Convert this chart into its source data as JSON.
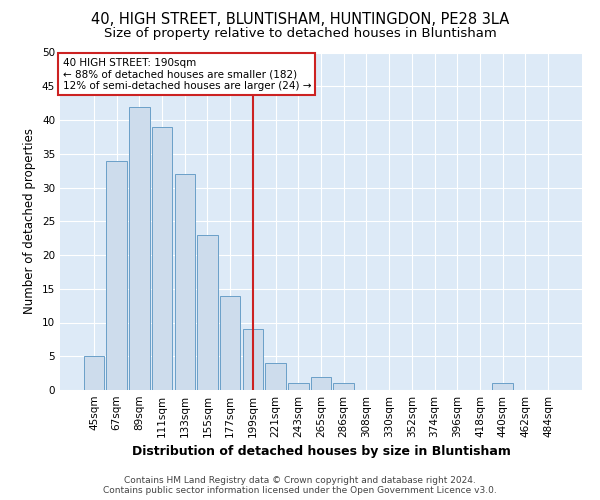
{
  "title1": "40, HIGH STREET, BLUNTISHAM, HUNTINGDON, PE28 3LA",
  "title2": "Size of property relative to detached houses in Bluntisham",
  "xlabel": "Distribution of detached houses by size in Bluntisham",
  "ylabel": "Number of detached properties",
  "categories": [
    "45sqm",
    "67sqm",
    "89sqm",
    "111sqm",
    "133sqm",
    "155sqm",
    "177sqm",
    "199sqm",
    "221sqm",
    "243sqm",
    "265sqm",
    "286sqm",
    "308sqm",
    "330sqm",
    "352sqm",
    "374sqm",
    "396sqm",
    "418sqm",
    "440sqm",
    "462sqm",
    "484sqm"
  ],
  "bar_values": [
    5,
    34,
    42,
    39,
    32,
    23,
    14,
    9,
    4,
    1,
    2,
    1,
    0,
    0,
    0,
    0,
    0,
    0,
    1,
    0,
    0
  ],
  "bar_color": "#cddcec",
  "bar_edge_color": "#6a9fc8",
  "bar_linewidth": 0.7,
  "vline_index": 7,
  "vline_color": "#cc2222",
  "annotation_title": "40 HIGH STREET: 190sqm",
  "annotation_line1": "← 88% of detached houses are smaller (182)",
  "annotation_line2": "12% of semi-detached houses are larger (24) →",
  "annotation_box_facecolor": "#ffffff",
  "annotation_box_edgecolor": "#cc2222",
  "background_color": "#ddeaf7",
  "ylim": [
    0,
    50
  ],
  "yticks": [
    0,
    5,
    10,
    15,
    20,
    25,
    30,
    35,
    40,
    45,
    50
  ],
  "footer1": "Contains HM Land Registry data © Crown copyright and database right 2024.",
  "footer2": "Contains public sector information licensed under the Open Government Licence v3.0.",
  "title_fontsize": 10.5,
  "subtitle_fontsize": 9.5,
  "tick_fontsize": 7.5,
  "ylabel_fontsize": 8.5,
  "xlabel_fontsize": 9,
  "annotation_fontsize": 7.5,
  "footer_fontsize": 6.5
}
